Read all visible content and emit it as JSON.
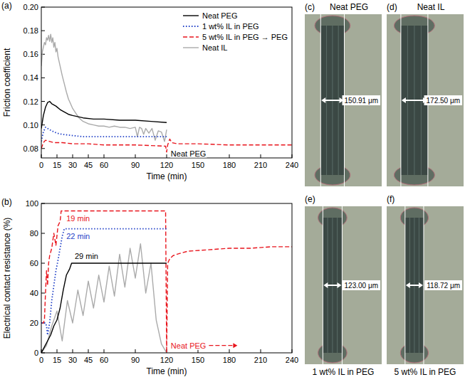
{
  "chart_data": [
    {
      "type": "line",
      "panel": "(a)",
      "x_label": "Time (min)",
      "y_label": "Friction coefficient",
      "xlim": [
        0,
        240
      ],
      "xticks": [
        0,
        15,
        30,
        45,
        60,
        90,
        120,
        150,
        180,
        210,
        240
      ],
      "ylim": [
        0.072,
        0.2
      ],
      "yticks": [
        0.08,
        {
          "value": 0.1,
          "label": "0.10"
        },
        0.12,
        0.14,
        0.16,
        0.18,
        {
          "value": 0.2,
          "label": "0.20"
        }
      ],
      "legend": "upper right",
      "series": [
        {
          "name": "Neat PEG",
          "color": "#000000",
          "line_style": "solid",
          "x": [
            0,
            2,
            4,
            6,
            8,
            10,
            14,
            18,
            22,
            26,
            30,
            40,
            50,
            60,
            75,
            90,
            105,
            120
          ],
          "values": [
            0.097,
            0.108,
            0.115,
            0.119,
            0.12,
            0.118,
            0.116,
            0.113,
            0.111,
            0.109,
            0.108,
            0.106,
            0.105,
            0.105,
            0.104,
            0.104,
            0.103,
            0.102
          ]
        },
        {
          "name": "1 wt% IL in PEG",
          "color": "#1f3fc7",
          "line_style": "dotted",
          "x": [
            0,
            2,
            4,
            6,
            10,
            15,
            20,
            30,
            40,
            60,
            80,
            100,
            120
          ],
          "values": [
            0.086,
            0.094,
            0.098,
            0.097,
            0.095,
            0.093,
            0.092,
            0.091,
            0.09,
            0.09,
            0.09,
            0.09,
            0.09
          ]
        },
        {
          "name": "5 wt% IL in PEG → PEG",
          "color": "#e8141c",
          "line_style": "dashed",
          "x": [
            0,
            2,
            4,
            8,
            12,
            20,
            30,
            45,
            60,
            90,
            119,
            120,
            121,
            123,
            125,
            130,
            150,
            180,
            210,
            240
          ],
          "values": [
            0.08,
            0.085,
            0.087,
            0.086,
            0.085,
            0.085,
            0.084,
            0.084,
            0.083,
            0.083,
            0.082,
            0.077,
            0.083,
            0.088,
            0.085,
            0.084,
            0.084,
            0.083,
            0.083,
            0.083
          ]
        },
        {
          "name": "Neat IL",
          "color": "#aaaaaa",
          "line_style": "solid",
          "x": [
            0,
            1,
            2,
            3,
            4,
            5,
            6,
            7,
            8,
            9,
            10,
            11,
            12,
            13,
            14,
            15,
            16,
            18,
            20,
            22,
            24,
            26,
            28,
            30,
            33,
            36,
            40,
            45,
            50,
            55,
            60,
            65,
            70,
            75,
            80,
            85,
            90,
            92,
            94,
            96,
            98,
            100,
            103,
            106,
            109,
            112,
            115,
            118,
            120
          ],
          "values": [
            0.15,
            0.162,
            0.166,
            0.17,
            0.168,
            0.174,
            0.172,
            0.176,
            0.171,
            0.177,
            0.17,
            0.174,
            0.166,
            0.17,
            0.162,
            0.165,
            0.158,
            0.15,
            0.142,
            0.135,
            0.128,
            0.122,
            0.118,
            0.114,
            0.11,
            0.106,
            0.103,
            0.101,
            0.1,
            0.099,
            0.099,
            0.098,
            0.099,
            0.098,
            0.098,
            0.097,
            0.098,
            0.09,
            0.098,
            0.097,
            0.092,
            0.097,
            0.093,
            0.097,
            0.087,
            0.095,
            0.094,
            0.086,
            0.096
          ]
        }
      ],
      "annotations": [
        {
          "text": "Neat PEG",
          "x": 124,
          "y": 0.0735,
          "color": "#000000"
        }
      ]
    },
    {
      "type": "line",
      "panel": "(b)",
      "x_label": "Time (min)",
      "y_label": "Electrical contact resistance (%)",
      "xlim": [
        0,
        240
      ],
      "xticks": [
        0,
        15,
        30,
        45,
        60,
        90,
        120,
        150,
        180,
        210,
        240
      ],
      "ylim": [
        0,
        100
      ],
      "yticks": [
        0,
        20,
        40,
        60,
        80,
        100
      ],
      "series": [
        {
          "color": "#000000",
          "line_style": "solid",
          "x": [
            0,
            3,
            6,
            9,
            12,
            15,
            18,
            21,
            24,
            27,
            29,
            40,
            60,
            90,
            120
          ],
          "values": [
            0,
            4,
            8,
            12,
            18,
            22,
            30,
            42,
            52,
            56,
            60,
            60,
            60,
            60,
            60
          ]
        },
        {
          "color": "#1f3fc7",
          "line_style": "dotted",
          "x": [
            0,
            4,
            5,
            6,
            8,
            10,
            12,
            14,
            16,
            18,
            20,
            22,
            40,
            80,
            120
          ],
          "values": [
            20,
            20,
            18,
            12,
            20,
            35,
            45,
            55,
            62,
            70,
            78,
            83,
            83,
            83,
            83
          ]
        },
        {
          "color": "#e8141c",
          "line_style": "dashed",
          "x": [
            0,
            2,
            3,
            4,
            5,
            6,
            7,
            8,
            10,
            12,
            14,
            16,
            18,
            19,
            40,
            80,
            119,
            120,
            121,
            123,
            126,
            130,
            140,
            160,
            180,
            200,
            220,
            240
          ],
          "values": [
            20,
            20,
            22,
            40,
            55,
            45,
            60,
            65,
            70,
            80,
            72,
            85,
            88,
            95,
            95,
            95,
            95,
            0,
            60,
            63,
            65,
            66,
            68,
            69,
            70,
            70,
            71,
            71
          ]
        },
        {
          "color": "#aaaaaa",
          "line_style": "solid",
          "x": [
            0,
            5,
            10,
            15,
            20,
            25,
            30,
            35,
            40,
            45,
            50,
            55,
            60,
            65,
            70,
            75,
            80,
            85,
            90,
            95,
            100,
            105,
            110,
            115,
            120
          ],
          "values": [
            0,
            5,
            18,
            28,
            8,
            35,
            20,
            42,
            25,
            48,
            30,
            52,
            34,
            58,
            38,
            66,
            44,
            70,
            50,
            73,
            40,
            60,
            22,
            6,
            0
          ]
        }
      ],
      "annotations": [
        {
          "text": "19 min",
          "x": 24,
          "y": 88,
          "color": "#e8141c"
        },
        {
          "text": "22 min",
          "x": 24,
          "y": 76,
          "color": "#1f3fc7"
        },
        {
          "text": "29 min",
          "x": 32,
          "y": 63,
          "color": "#000000"
        },
        {
          "text": "Neat PEG",
          "x": 124,
          "y": 3,
          "color": "#e8141c",
          "line_style": "dashed"
        }
      ]
    }
  ],
  "micrographs": [
    {
      "panel": "(c)",
      "title": "Neat PEG",
      "width": 150.91,
      "width_label": "150.91 μm"
    },
    {
      "panel": "(d)",
      "title": "Neat IL",
      "width": 172.5,
      "width_label": "172.50 μm"
    },
    {
      "panel": "(e)",
      "title": "1 wt% IL in PEG",
      "width": 123.0,
      "width_label": "123.00 μm"
    },
    {
      "panel": "(f)",
      "title": "5 wt% IL in PEG",
      "width": 118.72,
      "width_label": "118.72 μm"
    }
  ]
}
